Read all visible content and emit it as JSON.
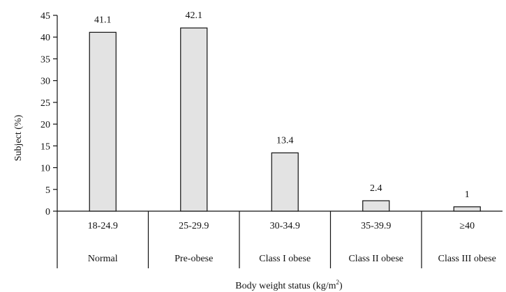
{
  "chart_data": {
    "type": "bar",
    "categories": [
      "18-24.9",
      "25-29.9",
      "30-34.9",
      "35-39.9",
      "≥40"
    ],
    "category_groups": [
      "Normal",
      "Pre-obese",
      "Class I obese",
      "Class II obese",
      "Class III obese"
    ],
    "values": [
      41.1,
      42.1,
      13.4,
      2.4,
      1
    ],
    "value_labels": [
      "41.1",
      "42.1",
      "13.4",
      "2.4",
      "1"
    ],
    "title": "",
    "xlabel_main": "Body weight status (kg/m",
    "xlabel_sup": "2",
    "xlabel_close": ")",
    "ylabel": "Subject (%)",
    "ylim": [
      0,
      45
    ],
    "yticks": [
      0,
      5,
      10,
      15,
      20,
      25,
      30,
      35,
      40,
      45
    ],
    "bar_color": "#e3e3e3",
    "bar_edge_color": "#111111",
    "grid": false,
    "legend": "none"
  }
}
